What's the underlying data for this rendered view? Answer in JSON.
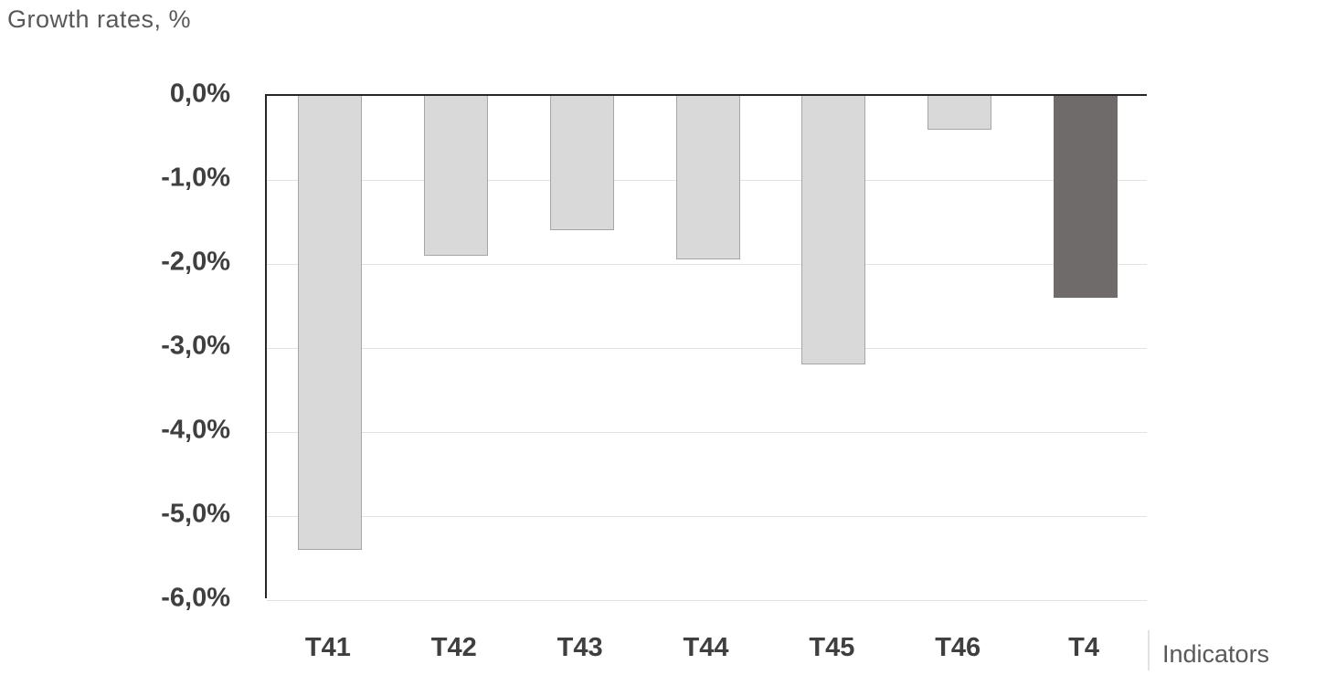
{
  "chart_data": {
    "type": "bar",
    "title": "Growth rates, %",
    "xlabel": "Indicators",
    "ylabel": "Growth rates, %",
    "categories": [
      "T41",
      "T42",
      "T43",
      "T44",
      "T45",
      "T46",
      "T4"
    ],
    "values": [
      -5.4,
      -1.9,
      -1.6,
      -1.95,
      -3.2,
      -0.4,
      -2.4
    ],
    "ytick_labels": [
      "0,0%",
      "-1,0%",
      "-2,0%",
      "-3,0%",
      "-4,0%",
      "-5,0%",
      "-6,0%"
    ],
    "ytick_values": [
      0,
      -1,
      -2,
      -3,
      -4,
      -5,
      -6
    ],
    "ylim": [
      0,
      -6
    ],
    "grid": "on",
    "legend": "none",
    "bar_color": "#d9d9d9",
    "bar_border": "#a6a6a6",
    "highlight_color": "#6f6b6b",
    "highlight_border": "#6f6b6b",
    "highlight_index": 6
  }
}
